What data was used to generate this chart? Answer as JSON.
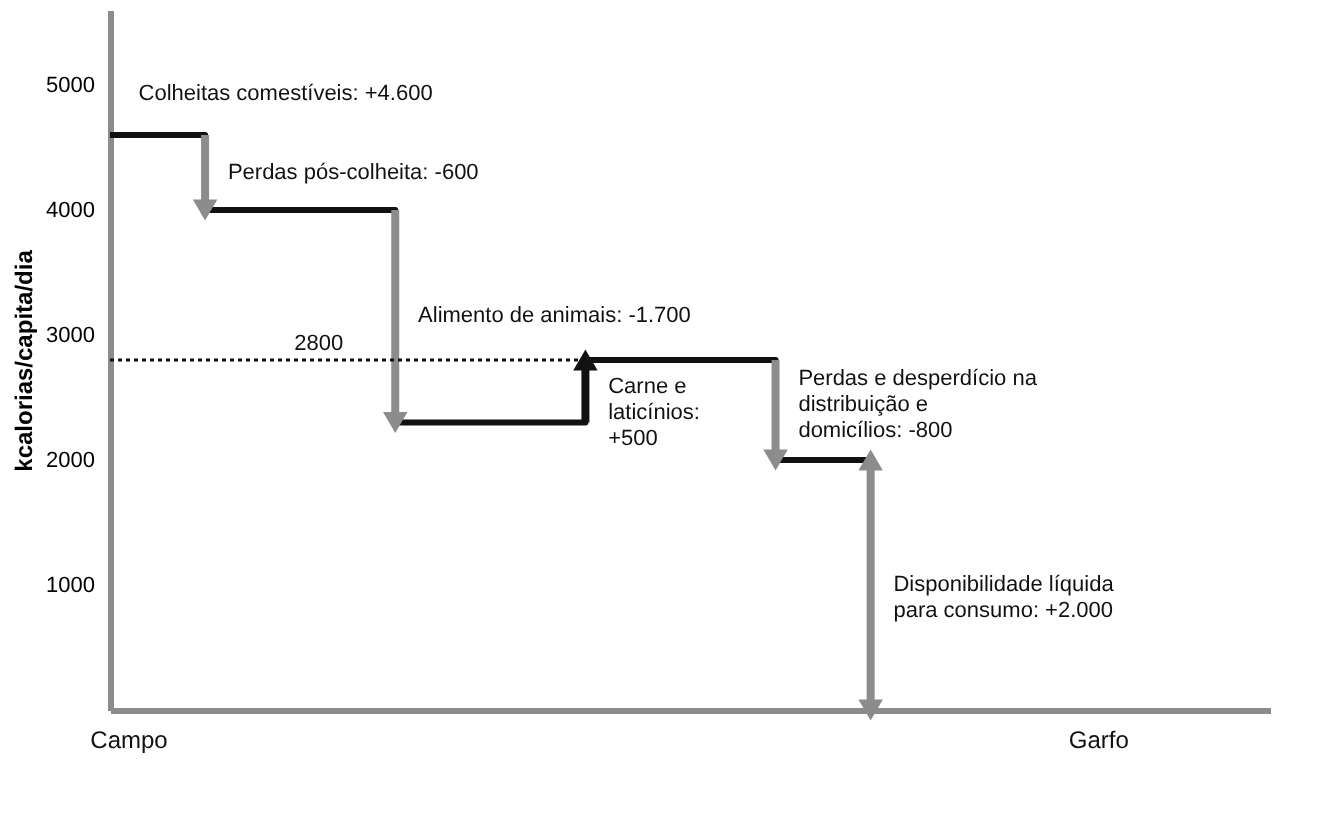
{
  "chart_data": {
    "type": "step",
    "ylabel": "kcalorias/capita/dia",
    "categories": [
      null,
      null,
      null,
      null,
      null
    ],
    "values": [
      4600,
      4000,
      2300,
      2800,
      2000
    ],
    "color": "#111111",
    "ylim": [
      0,
      5600
    ],
    "yticks": [
      1000,
      2000,
      3000,
      4000,
      5000
    ],
    "tick_labels": "y",
    "ref_lines": [
      {
        "axis": "y",
        "value": 2800,
        "label": "2800",
        "line_style": "dotted"
      }
    ],
    "annotations": [
      "Colheitas comestíveis: +4.600",
      "Perdas pós-colheita: -600",
      "Alimento de animais: -1.700",
      "Carne e laticínios: +500",
      "Perdas e desperdício na distribuição e domicílios: -800",
      "Disponibilidade líquida para consumo: +2.000",
      "Campo",
      "Garfo"
    ]
  }
}
